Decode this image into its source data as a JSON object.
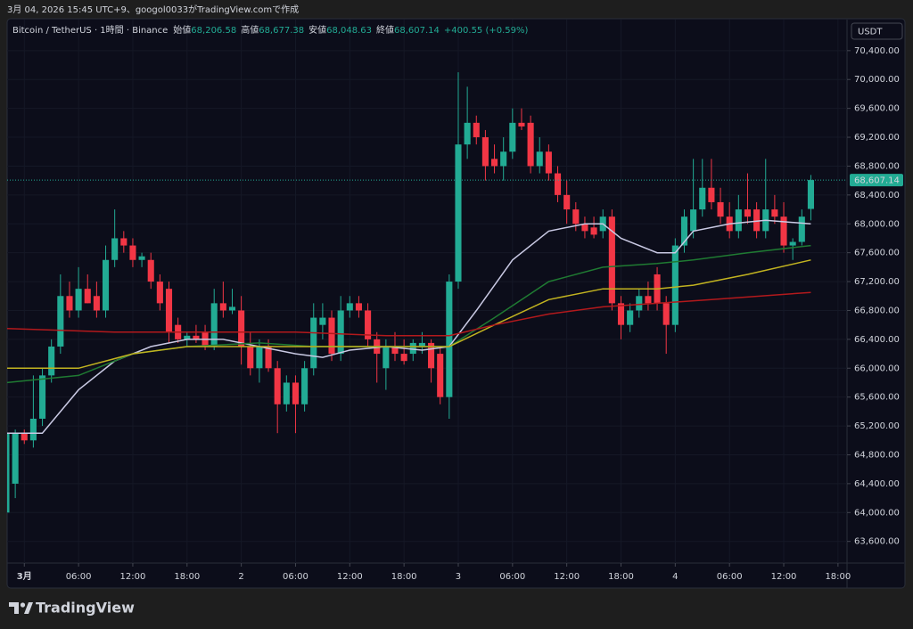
{
  "header": {
    "caption": "3月 04, 2026 15:45 UTC+9、googol0033がTradingView.comで作成"
  },
  "chart_data": {
    "type": "candlestick",
    "title": "Bitcoin / TetherUS · 1時間 · Binance",
    "ohlc_legend": [
      {
        "label": "始値",
        "value": "68,206.58"
      },
      {
        "label": "高値",
        "value": "68,677.38"
      },
      {
        "label": "安値",
        "value": "68,048.63"
      },
      {
        "label": "終値",
        "value": "68,607.14"
      }
    ],
    "change": "+400.55 (+0.59%)",
    "currency": "USDT",
    "up_color": "#22ab94",
    "down_color": "#f23645",
    "x": [
      -2,
      -1,
      0,
      1,
      2,
      3,
      4,
      5,
      6,
      7,
      8,
      9,
      10,
      11,
      12,
      13,
      14,
      15,
      16,
      17,
      18,
      19,
      20,
      21,
      22,
      23,
      24,
      25,
      26,
      27,
      28,
      29,
      30,
      31,
      32,
      33,
      34,
      35,
      36,
      37,
      38,
      39,
      40,
      41,
      42,
      43,
      44,
      45,
      46,
      47,
      48,
      49,
      50,
      51,
      52,
      53,
      54,
      55,
      56,
      57,
      58,
      59,
      60,
      61,
      62,
      63,
      64,
      65,
      66,
      67,
      68,
      69,
      70,
      71,
      72,
      73,
      74,
      75,
      76,
      77,
      78,
      79,
      80,
      81,
      82,
      83,
      84,
      85,
      86,
      87
    ],
    "open": [
      64000,
      64400,
      65100,
      65000,
      65300,
      65900,
      66300,
      67000,
      66800,
      67100,
      67000,
      66800,
      67500,
      67800,
      67700,
      67500,
      67500,
      67200,
      67100,
      66600,
      66400,
      66450,
      66500,
      66300,
      66900,
      66800,
      66800,
      66300,
      66000,
      66300,
      66000,
      65500,
      65800,
      65500,
      66000,
      66600,
      66700,
      66200,
      66800,
      66900,
      66800,
      66400,
      66000,
      66300,
      66200,
      66200,
      66300,
      66350,
      66200,
      65600,
      67200,
      69100,
      69400,
      69200,
      68900,
      68800,
      69000,
      69400,
      69400,
      68800,
      69000,
      68700,
      68400,
      68200,
      68000,
      67950,
      67900,
      68100,
      66900,
      66600,
      66800,
      67000,
      67300,
      66900,
      66600,
      67700,
      67900,
      68200,
      68500,
      68300,
      68100,
      67900,
      68200,
      68200,
      67900,
      68200,
      68100,
      67700,
      67750,
      68206.58
    ],
    "high": [
      65150,
      65150,
      65150,
      65900,
      66000,
      66400,
      67300,
      67200,
      67400,
      67300,
      67200,
      67700,
      68200,
      67900,
      67800,
      67600,
      67600,
      67300,
      67200,
      66700,
      66500,
      66600,
      66600,
      67100,
      67200,
      67100,
      67000,
      66500,
      66400,
      66400,
      66100,
      65900,
      65900,
      66100,
      66900,
      66900,
      66800,
      67000,
      67000,
      67000,
      66900,
      66500,
      66400,
      66500,
      66400,
      66400,
      66500,
      66400,
      66300,
      67300,
      70100,
      69900,
      69500,
      69300,
      69100,
      69200,
      69600,
      69600,
      69500,
      69200,
      69100,
      68800,
      68600,
      68300,
      68100,
      68100,
      68200,
      68200,
      67000,
      66900,
      67100,
      67200,
      67400,
      67000,
      67800,
      68200,
      68900,
      68900,
      68900,
      68500,
      68300,
      68400,
      68700,
      68300,
      68900,
      68400,
      68300,
      67800,
      68200,
      68677.38
    ],
    "low": [
      63950,
      64200,
      64950,
      64900,
      65200,
      65800,
      66200,
      66700,
      66700,
      66900,
      66700,
      66700,
      67400,
      67600,
      67400,
      67400,
      67100,
      66800,
      66350,
      66350,
      66300,
      66350,
      66250,
      66250,
      66700,
      66750,
      66050,
      65900,
      65800,
      65950,
      65100,
      65400,
      65100,
      65400,
      65900,
      66400,
      66100,
      66100,
      66700,
      66700,
      66300,
      65800,
      65700,
      66100,
      66050,
      66100,
      66200,
      65800,
      65500,
      65300,
      67100,
      68900,
      69100,
      68600,
      68700,
      68600,
      68900,
      69300,
      68700,
      68700,
      68600,
      68300,
      68000,
      67900,
      67800,
      67800,
      67800,
      66800,
      66400,
      66500,
      66700,
      66800,
      66800,
      66200,
      66500,
      67600,
      67800,
      68100,
      68200,
      68000,
      67800,
      67800,
      68000,
      67800,
      67800,
      68000,
      67600,
      67500,
      67700,
      68048.63
    ],
    "close": [
      65100,
      65100,
      65000,
      65300,
      65900,
      66300,
      67000,
      66800,
      67100,
      66900,
      66800,
      67500,
      67800,
      67700,
      67500,
      67550,
      67200,
      66900,
      66500,
      66400,
      66450,
      66400,
      66300,
      66900,
      66800,
      66850,
      66300,
      66000,
      66300,
      66000,
      65500,
      65800,
      65500,
      66000,
      66700,
      66700,
      66200,
      66800,
      66900,
      66800,
      66400,
      66200,
      66300,
      66200,
      66100,
      66350,
      66350,
      66000,
      65600,
      67200,
      69100,
      69400,
      69200,
      68800,
      68800,
      69000,
      69400,
      69350,
      68800,
      69000,
      68700,
      68400,
      68200,
      68000,
      67900,
      67850,
      68100,
      66900,
      66600,
      66800,
      67000,
      66900,
      66900,
      66600,
      67700,
      68100,
      68200,
      68500,
      68300,
      68100,
      67900,
      68200,
      68100,
      67900,
      68200,
      68100,
      67700,
      67750,
      68100,
      68607.14
    ],
    "lines": [
      {
        "color": "#c9c9e3",
        "x": [
          -2,
          2,
          6,
          10,
          14,
          18,
          22,
          26,
          30,
          33,
          36,
          40,
          44,
          47,
          50,
          54,
          58,
          62,
          64,
          66,
          70,
          72,
          74,
          78,
          82,
          87
        ],
        "values": [
          65100,
          65100,
          65700,
          66100,
          66300,
          66400,
          66400,
          66300,
          66200,
          66150,
          66250,
          66300,
          66250,
          66300,
          66800,
          67500,
          67900,
          68000,
          68000,
          67800,
          67600,
          67600,
          67900,
          68000,
          68050,
          68000
        ]
      },
      {
        "color": "#1f7a32",
        "x": [
          -2,
          6,
          12,
          18,
          26,
          32,
          40,
          47,
          52,
          58,
          64,
          70,
          74,
          80,
          87
        ],
        "values": [
          65800,
          65900,
          66200,
          66300,
          66350,
          66300,
          66300,
          66300,
          66700,
          67200,
          67400,
          67450,
          67500,
          67600,
          67700
        ]
      },
      {
        "color": "#c2b320",
        "x": [
          -2,
          6,
          12,
          18,
          26,
          32,
          40,
          47,
          52,
          58,
          64,
          70,
          74,
          80,
          87
        ],
        "values": [
          66000,
          66000,
          66200,
          66300,
          66300,
          66300,
          66300,
          66300,
          66600,
          66950,
          67100,
          67100,
          67150,
          67300,
          67500
        ]
      },
      {
        "color": "#b3191c",
        "x": [
          -2,
          10,
          20,
          30,
          40,
          47,
          52,
          58,
          64,
          70,
          76,
          87
        ],
        "values": [
          66550,
          66500,
          66500,
          66500,
          66450,
          66450,
          66600,
          66750,
          66850,
          66900,
          66950,
          67050
        ]
      }
    ],
    "last_price_label": "68,607.14",
    "xlim": [
      -1.9,
      91
    ],
    "xticks": [
      {
        "value": 0,
        "label": "3月"
      },
      {
        "value": 6,
        "label": "06:00"
      },
      {
        "value": 12,
        "label": "12:00"
      },
      {
        "value": 18,
        "label": "18:00"
      },
      {
        "value": 24,
        "label": "2"
      },
      {
        "value": 30,
        "label": "06:00"
      },
      {
        "value": 36,
        "label": "12:00"
      },
      {
        "value": 42,
        "label": "18:00"
      },
      {
        "value": 48,
        "label": "3"
      },
      {
        "value": 54,
        "label": "06:00"
      },
      {
        "value": 60,
        "label": "12:00"
      },
      {
        "value": 66,
        "label": "18:00"
      },
      {
        "value": 72,
        "label": "4"
      },
      {
        "value": 78,
        "label": "06:00"
      },
      {
        "value": 84,
        "label": "12:00"
      },
      {
        "value": 90,
        "label": "18:00"
      }
    ],
    "ylim": [
      63300,
      70830
    ],
    "yticks": [
      {
        "value": 70400,
        "label": "70,400.00"
      },
      {
        "value": 70000,
        "label": "70,000.00"
      },
      {
        "value": 69600,
        "label": "69,600.00"
      },
      {
        "value": 69200,
        "label": "69,200.00"
      },
      {
        "value": 68800,
        "label": "68,800.00"
      },
      {
        "value": 68400,
        "label": "68,400.00"
      },
      {
        "value": 68000,
        "label": "68,000.00"
      },
      {
        "value": 67600,
        "label": "67,600.00"
      },
      {
        "value": 67200,
        "label": "67,200.00"
      },
      {
        "value": 66800,
        "label": "66,800.00"
      },
      {
        "value": 66400,
        "label": "66,400.00"
      },
      {
        "value": 66000,
        "label": "66,000.00"
      },
      {
        "value": 65600,
        "label": "65,600.00"
      },
      {
        "value": 65200,
        "label": "65,200.00"
      },
      {
        "value": 64800,
        "label": "64,800.00"
      },
      {
        "value": 64400,
        "label": "64,400.00"
      },
      {
        "value": 64000,
        "label": "64,000.00"
      },
      {
        "value": 63600,
        "label": "63,600.00"
      }
    ],
    "grid": true
  },
  "footer": {
    "brand": "TradingView"
  }
}
